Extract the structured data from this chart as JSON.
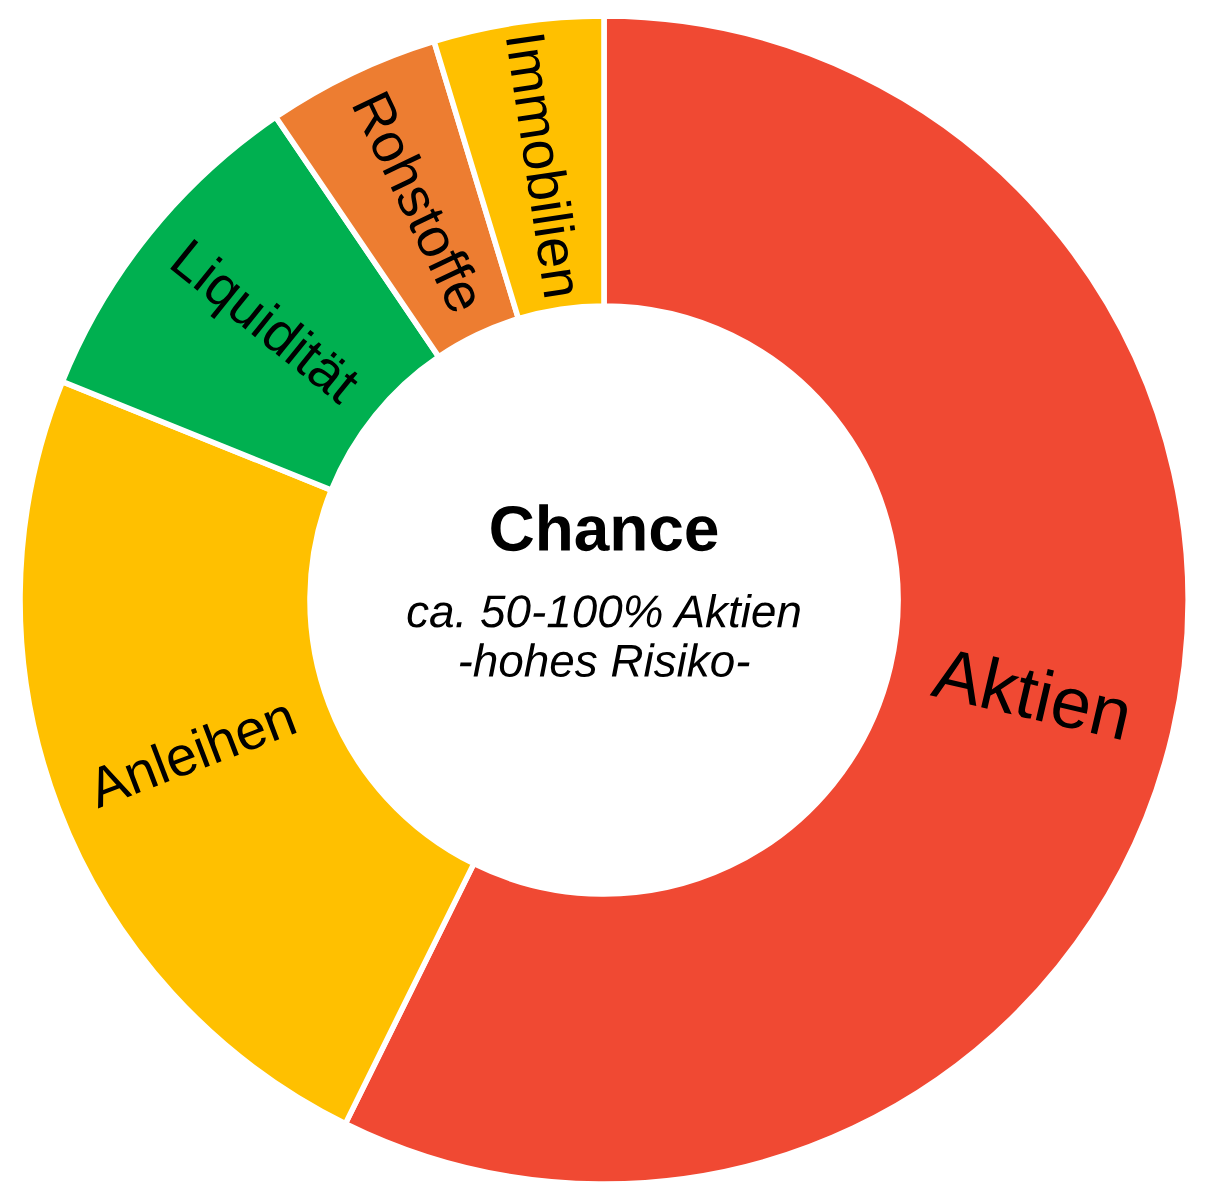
{
  "chart_data": {
    "type": "donut",
    "title": "Chance",
    "subtitle": "ca. 50-100% Aktien\n-hohes Risiko-",
    "categories": [
      "Aktien",
      "Anleihen",
      "Liquidität",
      "Rohstoffe",
      "Immobilien"
    ],
    "values": [
      57.3,
      23.8,
      9.4,
      4.8,
      4.7
    ],
    "colors": [
      "#f04933",
      "#ffc000",
      "#00b050",
      "#ed7d31",
      "#ffc000"
    ]
  }
}
